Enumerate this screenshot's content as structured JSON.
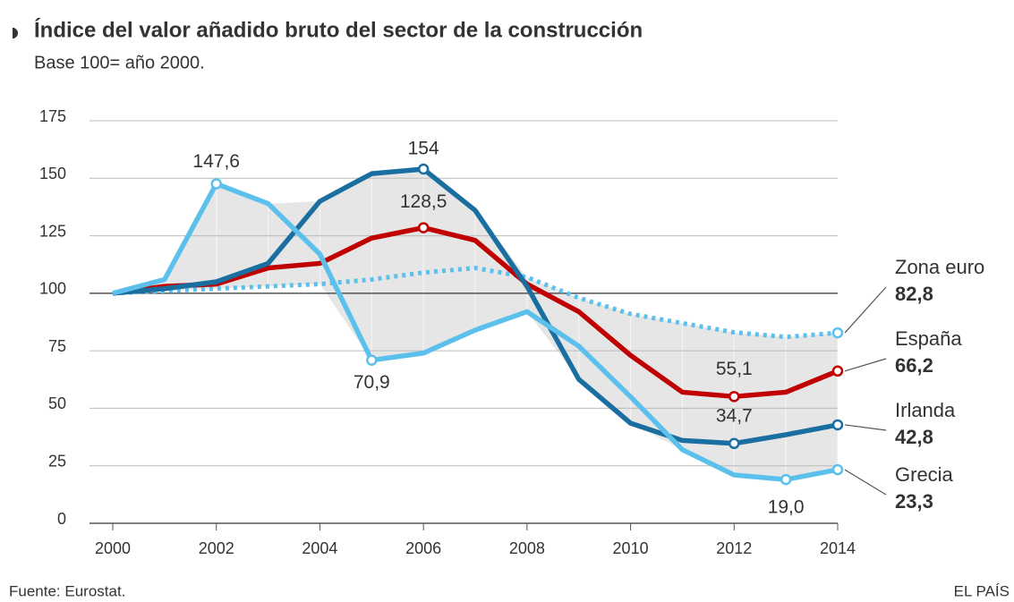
{
  "chart_data": {
    "type": "line",
    "title": "Índice del valor añadido bruto del sector de la construcción",
    "subtitle": "Base 100= año 2000.",
    "source": "Fuente: Eurostat.",
    "credit": "EL PAÍS",
    "x": [
      2000,
      2001,
      2002,
      2003,
      2004,
      2005,
      2006,
      2007,
      2008,
      2009,
      2010,
      2011,
      2012,
      2013,
      2014
    ],
    "xlim": [
      2000,
      2014
    ],
    "xticks": [
      2000,
      2002,
      2004,
      2006,
      2008,
      2010,
      2012,
      2014
    ],
    "ylim": [
      0,
      175
    ],
    "yticks": [
      0,
      25,
      50,
      75,
      100,
      125,
      150,
      175
    ],
    "grid": true,
    "series": [
      {
        "name": "Zona euro",
        "color": "#5bc0eb",
        "style": "dotted",
        "values": [
          100,
          101,
          102,
          103,
          104,
          106,
          109,
          111,
          107,
          98,
          91,
          87,
          83,
          81,
          82.8
        ],
        "value_labels": [
          null,
          null,
          null,
          null,
          null,
          null,
          null,
          null,
          null,
          null,
          null,
          null,
          null,
          null,
          "82,8"
        ]
      },
      {
        "name": "España",
        "color": "#c00000",
        "style": "solid",
        "values": [
          100,
          103,
          104,
          111,
          113,
          124,
          128.5,
          123,
          104,
          92,
          73,
          57,
          55.1,
          57,
          66.2
        ],
        "value_labels": [
          null,
          null,
          null,
          null,
          null,
          null,
          "128,5",
          null,
          null,
          null,
          null,
          null,
          "55,1",
          null,
          "66,2"
        ]
      },
      {
        "name": "Irlanda",
        "color": "#1a6fa0",
        "style": "solid",
        "values": [
          100,
          102,
          105,
          113,
          140,
          152,
          154,
          136,
          103,
          62.6,
          43.5,
          36,
          34.7,
          38.5,
          42.8
        ],
        "value_labels": [
          null,
          null,
          null,
          null,
          null,
          null,
          "154",
          null,
          null,
          null,
          null,
          null,
          "34,7",
          null,
          "42,8"
        ]
      },
      {
        "name": "Grecia",
        "color": "#5bc0eb",
        "style": "solid",
        "values": [
          100,
          106,
          147.6,
          139,
          117,
          70.9,
          74,
          84,
          92,
          77,
          55,
          32,
          21,
          19.0,
          23.3
        ],
        "value_labels": [
          null,
          null,
          "147,6",
          null,
          null,
          "70,9",
          null,
          null,
          null,
          null,
          null,
          null,
          null,
          "19,0",
          "23,3"
        ]
      }
    ]
  }
}
